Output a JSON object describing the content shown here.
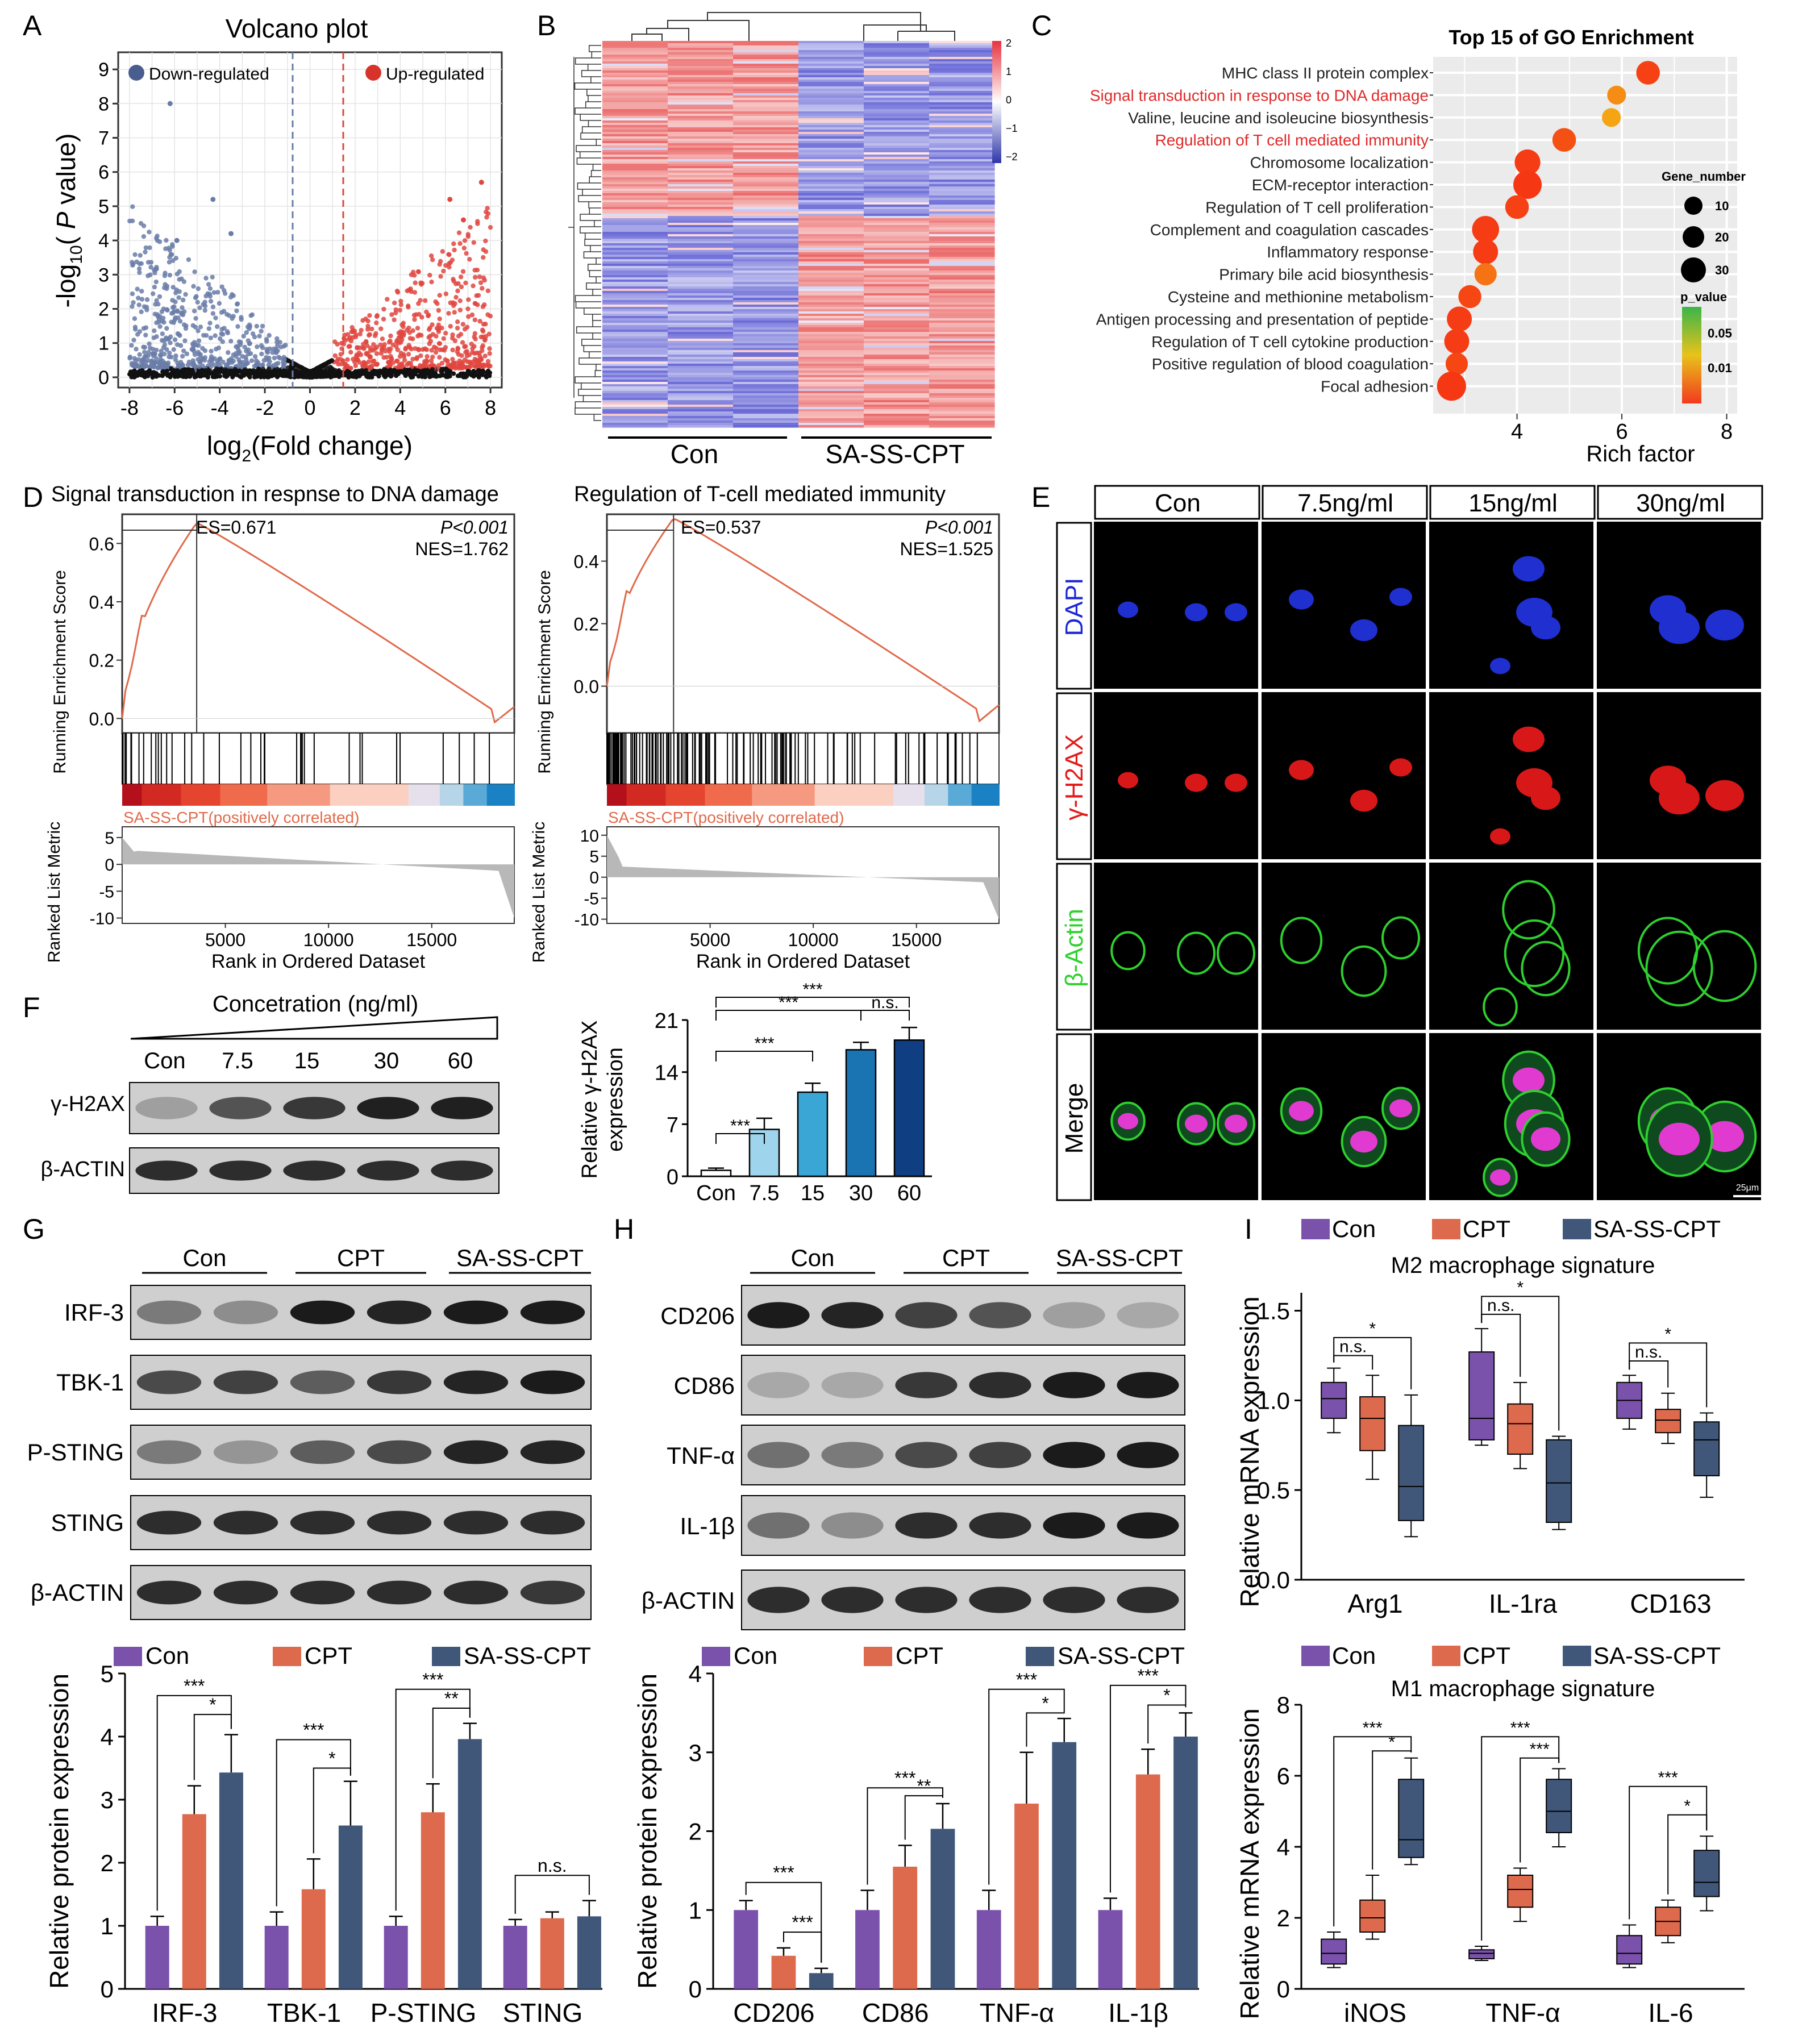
{
  "panels": {
    "A": {
      "letter": "A",
      "title": "Volcano plot",
      "legend_down": "Down-regulated",
      "legend_up": "Up-regulated",
      "xlabel_pre": "log",
      "xlabel_sub": "2",
      "xlabel_post": "(Fold change)",
      "ylabel_pre": "-log",
      "ylabel_sub": "10",
      "ylabel_mid": "( ",
      "ylabel_ital": "P",
      "ylabel_post": " value)",
      "xticks": [
        "-8",
        "-6",
        "-4",
        "-2",
        "0",
        "2",
        "4",
        "6",
        "8"
      ],
      "yticks": [
        "0",
        "1",
        "2",
        "3",
        "4",
        "5",
        "6",
        "7",
        "8",
        "9"
      ]
    },
    "B": {
      "letter": "B",
      "group_labels": [
        "Con",
        "SA-SS-CPT"
      ],
      "scale_ticks": [
        "2",
        "1",
        "0",
        "−1",
        "−2"
      ]
    },
    "C": {
      "letter": "C",
      "title": "Top 15 of GO Enrichment",
      "xlabel": "Rich factor",
      "xticks": [
        "4",
        "6",
        "8"
      ],
      "size_legend_title": "Gene_number",
      "size_legend": [
        "10",
        "20",
        "30"
      ],
      "color_legend_title": "p_value",
      "color_legend": [
        "0.05",
        "0.01"
      ]
    },
    "D": {
      "letter": "D",
      "left": {
        "title": "Signal transduction in respnse to DNA damage",
        "es": "ES=0.671",
        "p": "P<0.001",
        "nes": "NES=1.762",
        "yticks": [
          "0.0",
          "0.2",
          "0.4",
          "0.6"
        ]
      },
      "right": {
        "title": "Regulation of T-cell mediated immunity",
        "es": "ES=0.537",
        "p": "P<0.001",
        "nes": "NES=1.525",
        "yticks": [
          "0.0",
          "0.2",
          "0.4"
        ]
      },
      "ylabel_top": "Running Enrichment Score",
      "ylabel_bottom": "Ranked List Metric",
      "pos_label": "SA-SS-CPT(positively correlated)",
      "left_metric_ticks": [
        "5",
        "0",
        "-5",
        "-10"
      ],
      "right_metric_ticks": [
        "10",
        "5",
        "0",
        "-5",
        "-10"
      ],
      "xticks": [
        "5000",
        "10000",
        "15000"
      ],
      "xlabel": "Rank in Ordered Dataset"
    },
    "E": {
      "letter": "E",
      "columns": [
        "Con",
        "7.5ng/ml",
        "15ng/ml",
        "30ng/ml"
      ],
      "rows": [
        "DAPI",
        "γ-H2AX",
        "β-Actin",
        "Merge"
      ],
      "scale_bar": "25μm"
    },
    "F": {
      "letter": "F",
      "conc_label": "Concetration (ng/ml)",
      "lane_labels": [
        "Con",
        "7.5",
        "15",
        "30",
        "60"
      ],
      "blot_labels": [
        "γ-H2AX",
        "β-ACTIN"
      ],
      "ylabel_line1": "Relative γ-H2AX",
      "ylabel_line2": "expression",
      "yticks": [
        "0",
        "7",
        "14",
        "21"
      ],
      "sig": [
        "***",
        "***",
        "***",
        "***",
        "n.s."
      ]
    },
    "G": {
      "letter": "G",
      "group_labels": [
        "Con",
        "CPT",
        "SA-SS-CPT"
      ],
      "blot_labels": [
        "IRF-3",
        "TBK-1",
        "P-STING",
        "STING",
        "β-ACTIN"
      ],
      "legend": [
        "Con",
        "CPT",
        "SA-SS-CPT"
      ],
      "ylabel": "Relative protein expression",
      "yticks": [
        "0",
        "1",
        "2",
        "3",
        "4",
        "5"
      ],
      "sig": [
        "***",
        "*",
        "***",
        "*",
        "***",
        "**",
        "n.s."
      ]
    },
    "H": {
      "letter": "H",
      "group_labels": [
        "Con",
        "CPT",
        "SA-SS-CPT"
      ],
      "blot_labels": [
        "CD206",
        "CD86",
        "TNF-α",
        "IL-1β",
        "β-ACTIN"
      ],
      "legend": [
        "Con",
        "CPT",
        "SA-SS-CPT"
      ],
      "ylabel": "Relative protein expression",
      "yticks": [
        "0",
        "1",
        "2",
        "3",
        "4"
      ],
      "sig": [
        "***",
        "***",
        "***",
        "**",
        "***",
        "*",
        "***",
        "*"
      ]
    },
    "I": {
      "letter": "I",
      "legend": [
        "Con",
        "CPT",
        "SA-SS-CPT"
      ],
      "top_title": "M2 macrophage signature",
      "bottom_title": "M1 macrophage signature",
      "ylabel": "Relative mRNA expression",
      "top_yticks": [
        "0.0",
        "0.5",
        "1.0",
        "1.5"
      ],
      "bottom_yticks": [
        "0",
        "2",
        "4",
        "6",
        "8"
      ],
      "top_sig": [
        "n.s.",
        "*",
        "n.s.",
        "*",
        "n.s.",
        "*"
      ],
      "bottom_sig": [
        "***",
        "*",
        "***",
        "***",
        "***",
        "*"
      ]
    }
  },
  "colors": {
    "con": "#7b52ab",
    "cpt": "#dd6a4c",
    "sa": "#40577a",
    "volcano_up": "#e0473f",
    "volcano_down": "#6a7da8"
  },
  "chart_data": [
    {
      "type": "scatter",
      "panel": "A",
      "title": "Volcano plot",
      "xlabel": "log2(Fold change)",
      "ylabel": "-log10(P value)",
      "xlim": [
        -8.5,
        8.5
      ],
      "ylim": [
        -0.3,
        9.5
      ],
      "series": [
        {
          "name": "Down-regulated"
        },
        {
          "name": "Up-regulated"
        }
      ]
    },
    {
      "type": "heatmap",
      "panel": "B",
      "categories": [
        "Con",
        "SA-SS-CPT"
      ],
      "scale": [
        -2,
        2
      ]
    },
    {
      "type": "scatter",
      "panel": "C",
      "title": "Top 15 of GO Enrichment",
      "xlabel": "Rich factor",
      "xlim": [
        2.4,
        8.2
      ],
      "categories": [
        "MHC class II protein complex",
        "Signal transduction in response to DNA damage",
        "Valine, leucine and isoleucine biosynthesis",
        "Regulation of T cell mediated immunity",
        "Chromosome localization",
        "ECM-receptor interaction",
        "Regulation of T cell proliferation",
        "Complement and coagulation cascades",
        "Inflammatory response",
        "Primary bile acid biosynthesis",
        "Cysteine and methionine metabolism",
        "Antigen processing and presentation of peptide",
        "Regulation of T cell cytokine production",
        "Positive regulation of blood coagulation",
        "Focal adhesion"
      ],
      "highlighted": [
        1,
        3
      ],
      "x": [
        6.5,
        5.9,
        5.8,
        4.9,
        4.2,
        4.2,
        4.0,
        3.4,
        3.4,
        3.4,
        3.1,
        2.9,
        2.85,
        2.85,
        2.75
      ],
      "gene_number": [
        18,
        11,
        11,
        18,
        21,
        25,
        18,
        23,
        20,
        16,
        17,
        20,
        20,
        16,
        26
      ],
      "p_value": [
        0.005,
        0.02,
        0.025,
        0.008,
        0.004,
        0.003,
        0.005,
        0.004,
        0.004,
        0.015,
        0.006,
        0.004,
        0.004,
        0.006,
        0.003
      ]
    },
    {
      "type": "line",
      "panel": "D-left",
      "title": "Signal transduction in respnse to DNA damage",
      "ylabel": "Running Enrichment Score",
      "xlabel": "Rank in Ordered Dataset",
      "es_peak": 0.671,
      "xlim": [
        0,
        19000
      ],
      "ylim": [
        -0.05,
        0.7
      ]
    },
    {
      "type": "line",
      "panel": "D-right",
      "title": "Regulation of T-cell mediated immunity",
      "ylabel": "Running Enrichment Score",
      "xlabel": "Rank in Ordered Dataset",
      "es_peak": 0.537,
      "xlim": [
        0,
        19000
      ],
      "ylim": [
        -0.15,
        0.55
      ]
    },
    {
      "type": "bar",
      "panel": "F",
      "categories": [
        "Con",
        "7.5",
        "15",
        "30",
        "60"
      ],
      "values": [
        0.8,
        6.3,
        11.3,
        17.0,
        18.3
      ],
      "errors": [
        0.3,
        1.5,
        1.2,
        1.0,
        1.7
      ],
      "ylabel": "Relative γ-H2AX expression",
      "ylim": [
        0,
        21
      ]
    },
    {
      "type": "bar",
      "panel": "G",
      "categories": [
        "IRF-3",
        "TBK-1",
        "P-STING",
        "STING"
      ],
      "ylabel": "Relative protein expression",
      "ylim": [
        0,
        5
      ],
      "series": [
        {
          "name": "Con",
          "values": [
            1.0,
            1.0,
            1.0,
            1.0
          ],
          "errors": [
            0.15,
            0.22,
            0.15,
            0.1
          ]
        },
        {
          "name": "CPT",
          "values": [
            2.77,
            1.58,
            2.8,
            1.12
          ],
          "errors": [
            0.45,
            0.48,
            0.45,
            0.1
          ]
        },
        {
          "name": "SA-SS-CPT",
          "values": [
            3.43,
            2.59,
            3.96,
            1.15
          ],
          "errors": [
            0.6,
            0.7,
            0.25,
            0.25
          ]
        }
      ]
    },
    {
      "type": "bar",
      "panel": "H",
      "categories": [
        "CD206",
        "CD86",
        "TNF-α",
        "IL-1β"
      ],
      "ylabel": "Relative protein expression",
      "ylim": [
        0,
        4
      ],
      "series": [
        {
          "name": "Con",
          "values": [
            1.0,
            1.0,
            1.0,
            1.0
          ],
          "errors": [
            0.12,
            0.25,
            0.25,
            0.15
          ]
        },
        {
          "name": "CPT",
          "values": [
            0.42,
            1.55,
            2.35,
            2.72
          ],
          "errors": [
            0.1,
            0.27,
            0.65,
            0.32
          ]
        },
        {
          "name": "SA-SS-CPT",
          "values": [
            0.2,
            2.03,
            3.13,
            3.2
          ],
          "errors": [
            0.06,
            0.32,
            0.3,
            0.3
          ]
        }
      ]
    },
    {
      "type": "box",
      "panel": "I-top",
      "title": "M2 macrophage signature",
      "categories": [
        "Arg1",
        "IL-1ra",
        "CD163"
      ],
      "ylabel": "Relative mRNA expression",
      "ylim": [
        0,
        1.6
      ],
      "series": [
        {
          "name": "Con",
          "boxes": [
            [
              0.82,
              0.9,
              1.01,
              1.1,
              1.18
            ],
            [
              0.75,
              0.78,
              0.9,
              1.27,
              1.4
            ],
            [
              0.84,
              0.9,
              1.0,
              1.1,
              1.14
            ]
          ]
        },
        {
          "name": "CPT",
          "boxes": [
            [
              0.56,
              0.72,
              0.9,
              1.02,
              1.14
            ],
            [
              0.62,
              0.7,
              0.87,
              0.98,
              1.1
            ],
            [
              0.76,
              0.82,
              0.89,
              0.95,
              1.04
            ]
          ]
        },
        {
          "name": "SA-SS-CPT",
          "boxes": [
            [
              0.24,
              0.33,
              0.52,
              0.86,
              1.03
            ],
            [
              0.28,
              0.32,
              0.54,
              0.78,
              0.8
            ],
            [
              0.46,
              0.58,
              0.78,
              0.88,
              0.93
            ]
          ]
        }
      ]
    },
    {
      "type": "box",
      "panel": "I-bottom",
      "title": "M1 macrophage signature",
      "categories": [
        "iNOS",
        "TNF-α",
        "IL-6"
      ],
      "ylabel": "Relative mRNA expression",
      "ylim": [
        0,
        8
      ],
      "series": [
        {
          "name": "Con",
          "boxes": [
            [
              0.6,
              0.7,
              1.0,
              1.4,
              1.6
            ],
            [
              0.8,
              0.85,
              1.0,
              1.1,
              1.2
            ],
            [
              0.6,
              0.7,
              1.0,
              1.5,
              1.8
            ]
          ]
        },
        {
          "name": "CPT",
          "boxes": [
            [
              1.4,
              1.6,
              2.0,
              2.5,
              3.2
            ],
            [
              1.9,
              2.3,
              2.8,
              3.2,
              3.4
            ],
            [
              1.3,
              1.5,
              1.9,
              2.3,
              2.5
            ]
          ]
        },
        {
          "name": "SA-SS-CPT",
          "boxes": [
            [
              3.5,
              3.7,
              4.2,
              5.9,
              6.5
            ],
            [
              4.0,
              4.4,
              5.0,
              5.9,
              6.2
            ],
            [
              2.2,
              2.6,
              3.0,
              3.9,
              4.3
            ]
          ]
        }
      ]
    }
  ]
}
